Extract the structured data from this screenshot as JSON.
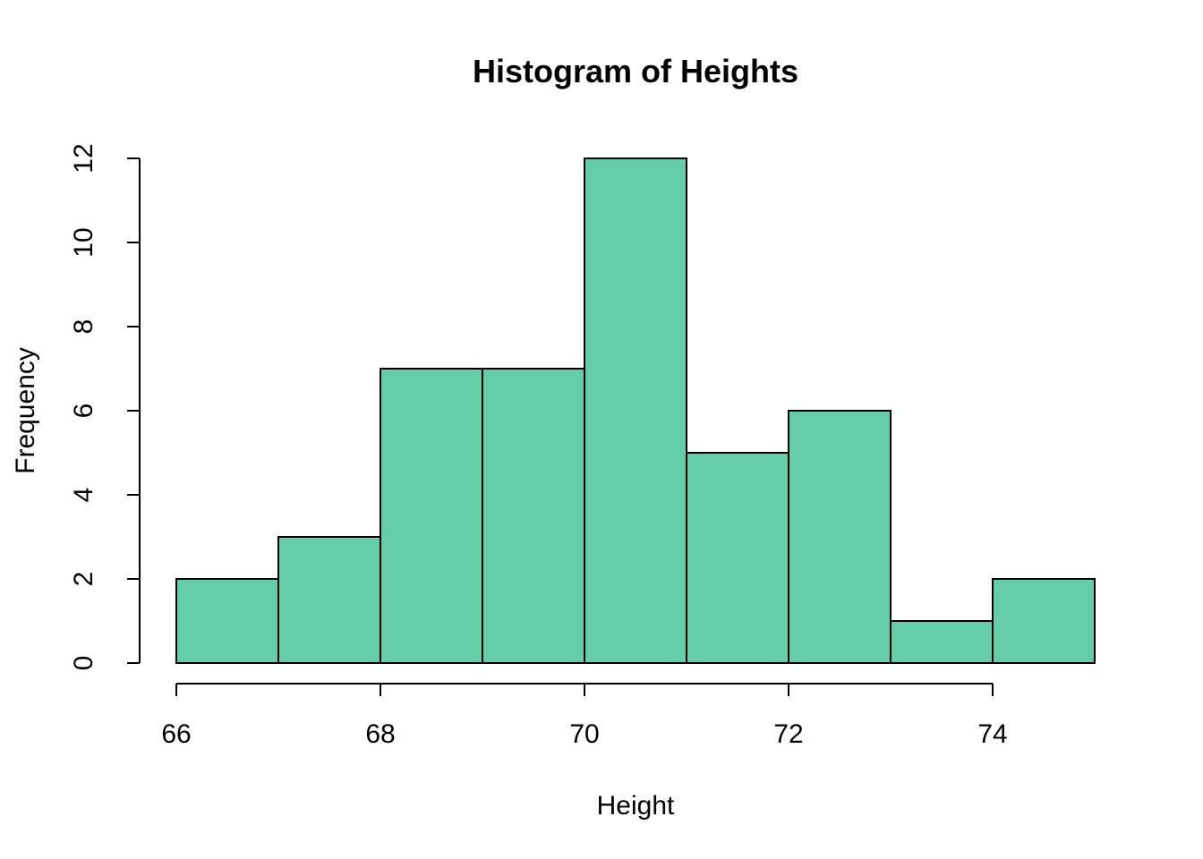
{
  "chart_data": {
    "type": "histogram",
    "title": "Histogram of Heights",
    "xlabel": "Height",
    "ylabel": "Frequency",
    "bin_edges": [
      66,
      67,
      68,
      69,
      70,
      71,
      72,
      73,
      74,
      75
    ],
    "counts": [
      2,
      3,
      7,
      7,
      12,
      5,
      6,
      1,
      2
    ],
    "x_ticks": [
      66,
      68,
      70,
      72,
      74
    ],
    "y_ticks": [
      0,
      2,
      4,
      6,
      8,
      10,
      12
    ],
    "xlim": [
      66,
      75
    ],
    "ylim": [
      0,
      12
    ],
    "x_axis_span": [
      66,
      74
    ],
    "legend": "none",
    "grid": "off",
    "bar_fill": "#66CDAA",
    "bar_stroke": "#000000",
    "axis_color": "#000000",
    "background": "#FFFFFF"
  }
}
